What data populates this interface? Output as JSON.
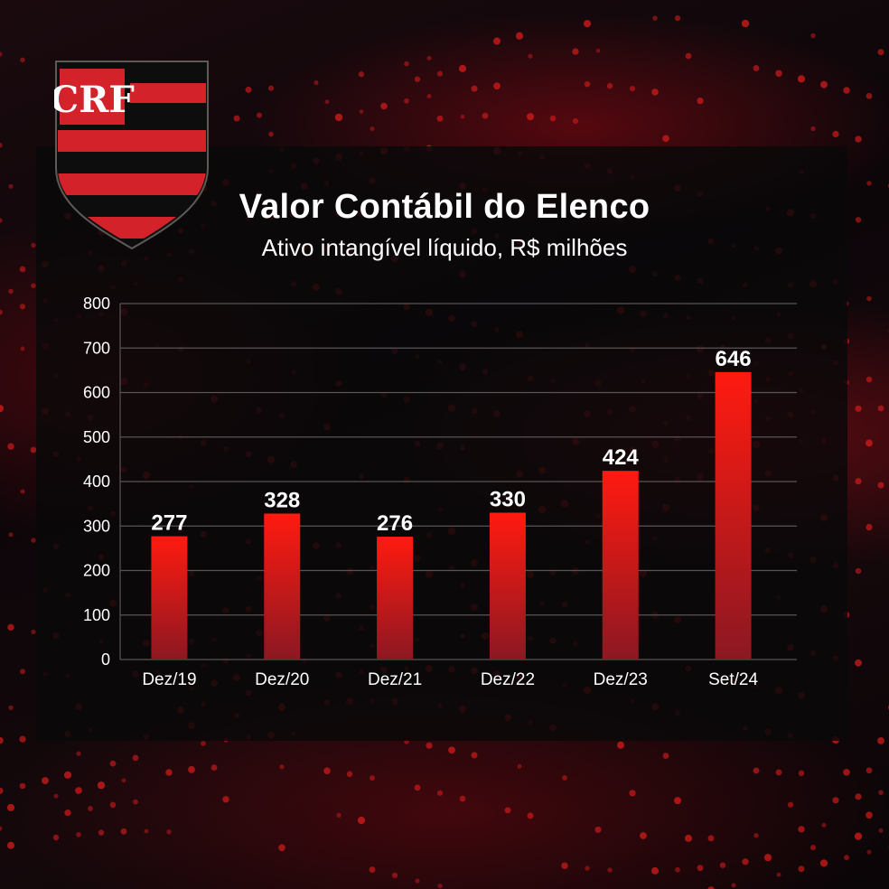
{
  "title": "Valor Contábil do Elenco",
  "subtitle": "Ativo intangível líquido, R$ milhões",
  "colors": {
    "bar_top": "#ff1a10",
    "bar_bottom": "#8c1822",
    "grid": "#5a5456",
    "text": "#ffffff",
    "crest_red": "#d3222a",
    "crest_black": "#0d0d0d"
  },
  "crest": {
    "icon": "flamengo-crest-icon",
    "monogram": "CRF"
  },
  "chart_data": {
    "type": "bar",
    "categories": [
      "Dez/19",
      "Dez/20",
      "Dez/21",
      "Dez/22",
      "Dez/23",
      "Set/24"
    ],
    "values": [
      277,
      328,
      276,
      330,
      424,
      646
    ],
    "data_labels": [
      "277",
      "328",
      "276",
      "330",
      "424",
      "646"
    ],
    "title": "Valor Contábil do Elenco",
    "subtitle": "Ativo intangível líquido, R$ milhões",
    "xlabel": "",
    "ylabel": "",
    "ylim": [
      0,
      800
    ],
    "yticks": [
      0,
      100,
      200,
      300,
      400,
      500,
      600,
      700,
      800
    ],
    "grid": true,
    "legend": "none"
  }
}
